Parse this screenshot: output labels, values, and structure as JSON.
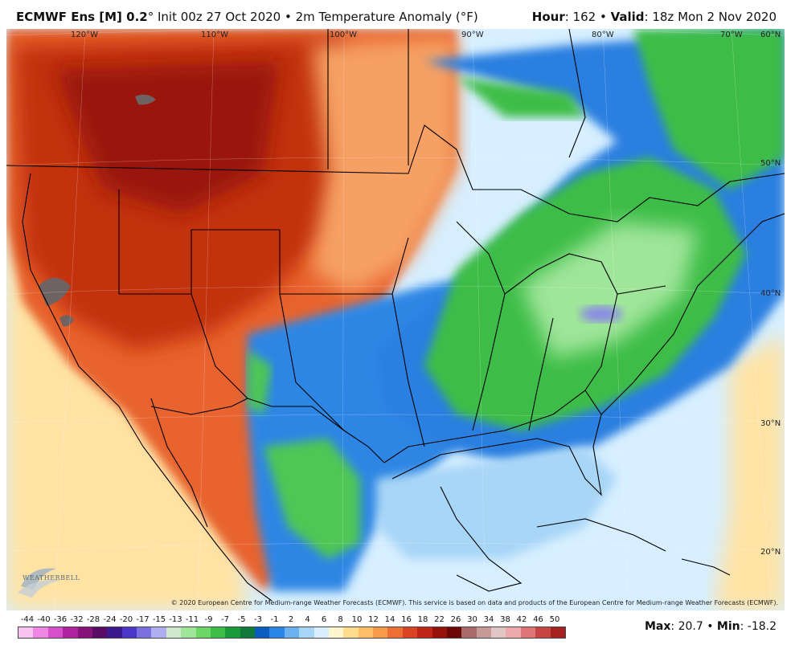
{
  "header": {
    "model": "ECMWF Ens [M] 0.2",
    "degree": "°",
    "init": " Init 00z 27 Oct 2020 • 2m Temperature Anomaly (°F)",
    "hour_label": "Hour",
    "hour_value": ": 162 • ",
    "valid_label": "Valid",
    "valid_value": ": 18z Mon 2 Nov 2020"
  },
  "longitude_labels": [
    "120°W",
    "110°W",
    "100°W",
    "90°W",
    "80°W",
    "70°W"
  ],
  "latitude_labels": [
    "60°N",
    "50°N",
    "40°N",
    "30°N",
    "20°N"
  ],
  "credit": "© 2020 European Centre for Medium-range Weather Forecasts (ECMWF). This service is based on data and products of the European Centre for Medium-range Weather Forecasts (ECMWF).",
  "logo": "WEATHERBELL",
  "legend": {
    "labels": [
      "-44",
      "-40",
      "-36",
      "-32",
      "-28",
      "-24",
      "-20",
      "-17",
      "-15",
      "-13",
      "-11",
      "-9",
      "-7",
      "-5",
      "-3",
      "-1",
      "2",
      "4",
      "6",
      "8",
      "10",
      "12",
      "14",
      "16",
      "18",
      "22",
      "26",
      "30",
      "34",
      "38",
      "42",
      "46",
      "50"
    ],
    "colors": [
      "#f7c3f0",
      "#ee86e3",
      "#d64fcb",
      "#b0239f",
      "#86137a",
      "#5a0b66",
      "#3a1a8c",
      "#4a36c8",
      "#7a70e0",
      "#b0aef2",
      "#cfe9cf",
      "#9fe59a",
      "#6dd765",
      "#3cbd46",
      "#1b9a3a",
      "#0f7a3a",
      "#0a5cbe",
      "#2a86e6",
      "#6cb2f0",
      "#a8d6f7",
      "#d7efff",
      "#fff5cf",
      "#ffdd8c",
      "#ffbf66",
      "#f79a4a",
      "#ee6f35",
      "#db4422",
      "#bf2514",
      "#961109",
      "#6b0705",
      "#a86a6a",
      "#c79a9a",
      "#e2c6c6",
      "#eeaaaa",
      "#e07575",
      "#c64444",
      "#a62222"
    ]
  },
  "stats": {
    "max_label": "Max",
    "max_value": ": 20.7 • ",
    "min_label": "Min",
    "min_value": ": -18.2"
  },
  "map_colors": {
    "ocean_far": "#ffe6a8",
    "ocean_near": "#d7efff",
    "warm_west": "#e45a28",
    "hot_core": "#b21d0c",
    "extreme": "#6f6262",
    "plains": "#f79a5a",
    "cool_blue": "#2a7fe0",
    "green_east": "#3cbd46",
    "light_green": "#9fe59a",
    "purple": "#8a86e6",
    "gulf_blue": "#8fc6f3",
    "land_outline": "#000000"
  }
}
